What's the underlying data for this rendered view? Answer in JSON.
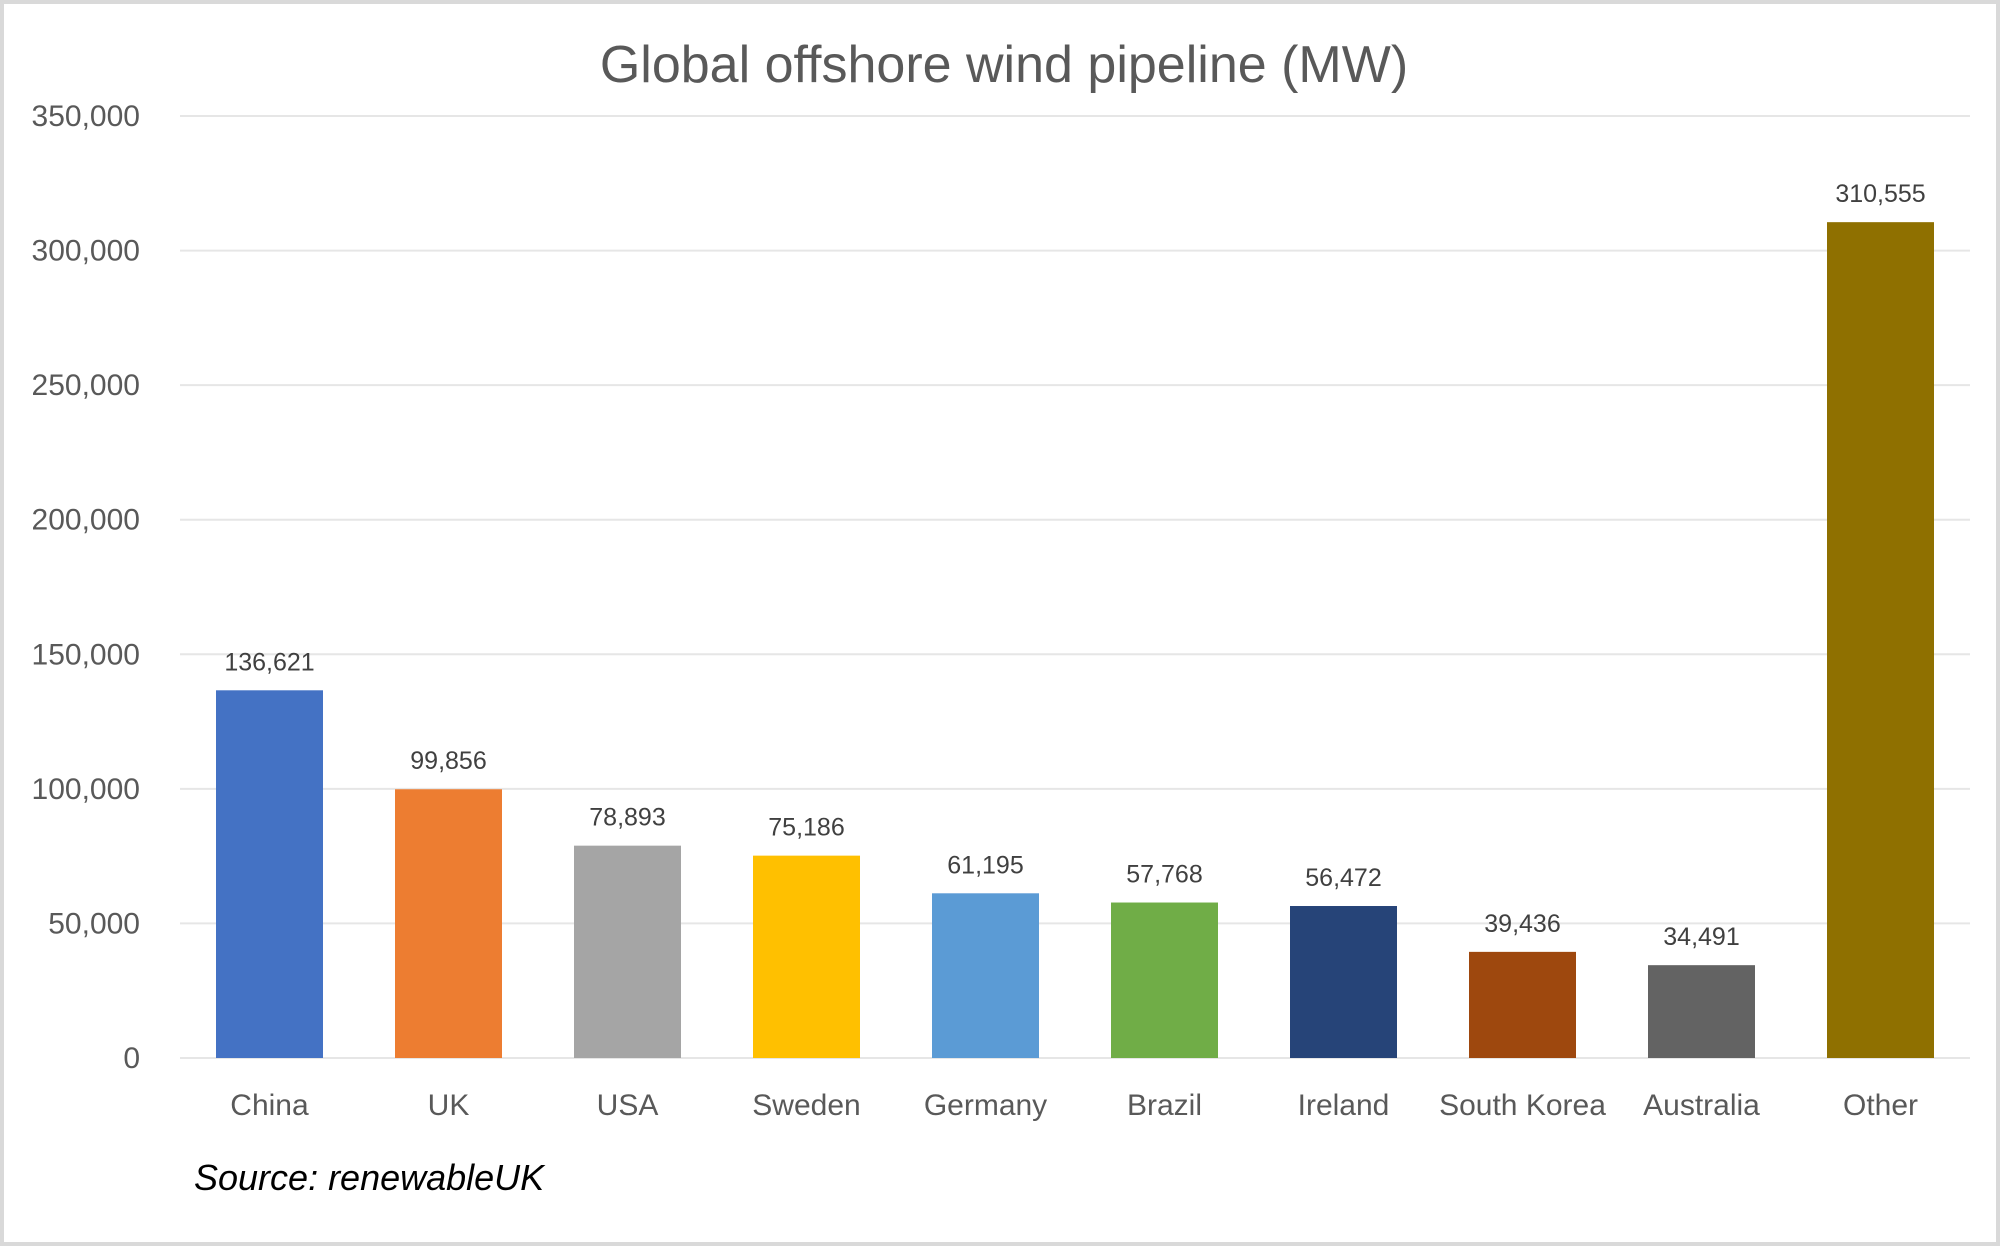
{
  "chart_data": {
    "type": "bar",
    "title": "Global offshore wind pipeline (MW)",
    "xlabel": "",
    "ylabel": "",
    "ylim": [
      0,
      350000
    ],
    "yticks": [
      0,
      50000,
      100000,
      150000,
      200000,
      250000,
      300000,
      350000
    ],
    "ytick_labels": [
      "0",
      "50,000",
      "100,000",
      "150,000",
      "200,000",
      "250,000",
      "300,000",
      "350,000"
    ],
    "grid": true,
    "categories": [
      "China",
      "UK",
      "USA",
      "Sweden",
      "Germany",
      "Brazil",
      "Ireland",
      "South Korea",
      "Australia",
      "Other"
    ],
    "values": [
      136621,
      99856,
      78893,
      75186,
      61195,
      57768,
      56472,
      39436,
      34491,
      310555
    ],
    "data_labels": [
      "136,621",
      "99,856",
      "78,893",
      "75,186",
      "61,195",
      "57,768",
      "56,472",
      "39,436",
      "34,491",
      "310,555"
    ],
    "colors": [
      "#4472C4",
      "#ED7D31",
      "#A5A5A5",
      "#FFC000",
      "#5B9BD5",
      "#70AD47",
      "#264478",
      "#9E480E",
      "#636363",
      "#8F7000"
    ],
    "source": "Source: renewableUK"
  }
}
